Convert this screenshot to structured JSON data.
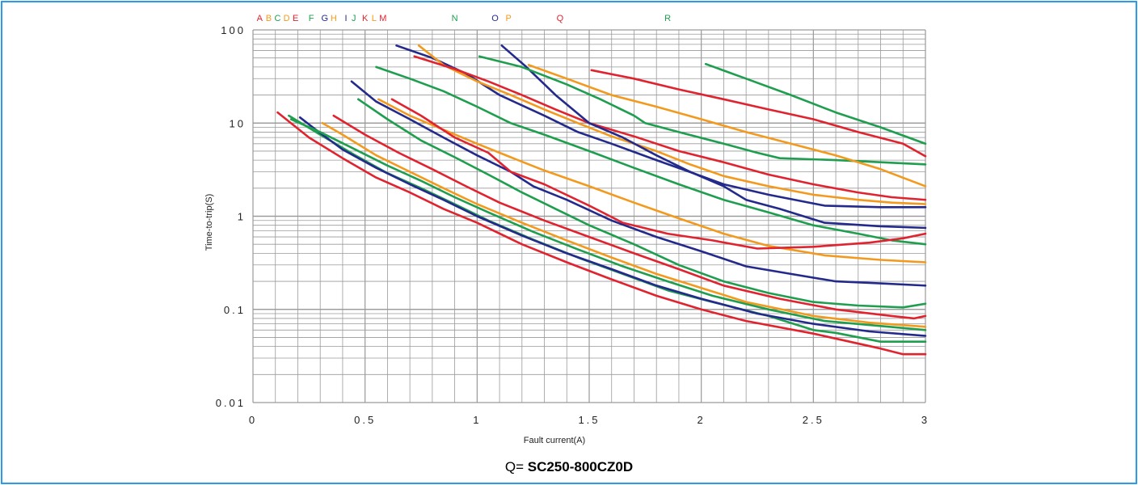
{
  "colors": {
    "border": "#2b9bea",
    "red": "#e0232e",
    "orange": "#f39a1e",
    "green": "#1e9e4e",
    "blue": "#232a8c",
    "grid": "#9a9a9a"
  },
  "caption": {
    "prefix": "Q=",
    "model": "SC250-800CZ0D"
  },
  "chart_data": {
    "type": "line",
    "xlabel": "Fault current(A)",
    "ylabel": "Time-to-trip(S)",
    "xlim": [
      0,
      3
    ],
    "ylim": [
      0.01,
      100
    ],
    "y_scale": "log",
    "grid": true,
    "x_ticks": [
      {
        "value": 0,
        "label": "0"
      },
      {
        "value": 0.5,
        "label": "0.5"
      },
      {
        "value": 1,
        "label": "1"
      },
      {
        "value": 1.5,
        "label": "1.5"
      },
      {
        "value": 2,
        "label": "2"
      },
      {
        "value": 2.5,
        "label": "2.5"
      },
      {
        "value": 3,
        "label": "3"
      }
    ],
    "y_ticks": [
      {
        "value": 100,
        "label": "100"
      },
      {
        "value": 10,
        "label": "10"
      },
      {
        "value": 1,
        "label": "1"
      },
      {
        "value": 0.1,
        "label": "0.1"
      },
      {
        "value": 0.01,
        "label": "0.01"
      }
    ],
    "curve_labels": [
      {
        "text": "A",
        "x": 0.03,
        "color": "red"
      },
      {
        "text": "B",
        "x": 0.07,
        "color": "orange"
      },
      {
        "text": "C",
        "x": 0.11,
        "color": "green"
      },
      {
        "text": "D",
        "x": 0.15,
        "color": "orange"
      },
      {
        "text": "E",
        "x": 0.19,
        "color": "red"
      },
      {
        "text": "F",
        "x": 0.26,
        "color": "green"
      },
      {
        "text": "G",
        "x": 0.32,
        "color": "blue"
      },
      {
        "text": "H",
        "x": 0.36,
        "color": "orange"
      },
      {
        "text": "I",
        "x": 0.415,
        "color": "blue"
      },
      {
        "text": "J",
        "x": 0.45,
        "color": "green"
      },
      {
        "text": "K",
        "x": 0.5,
        "color": "red"
      },
      {
        "text": "L",
        "x": 0.54,
        "color": "orange"
      },
      {
        "text": "M",
        "x": 0.58,
        "color": "red"
      },
      {
        "text": "N",
        "x": 0.9,
        "color": "green"
      },
      {
        "text": "O",
        "x": 1.08,
        "color": "blue"
      },
      {
        "text": "P",
        "x": 1.14,
        "color": "orange"
      },
      {
        "text": "Q",
        "x": 1.37,
        "color": "red"
      },
      {
        "text": "R",
        "x": 1.85,
        "color": "green"
      }
    ],
    "series": [
      {
        "color": "red",
        "points": [
          [
            0.11,
            13
          ],
          [
            0.25,
            7
          ],
          [
            0.4,
            4.2
          ],
          [
            0.55,
            2.6
          ],
          [
            0.7,
            1.8
          ],
          [
            0.85,
            1.2
          ],
          [
            1.0,
            0.85
          ],
          [
            1.2,
            0.5
          ],
          [
            1.4,
            0.32
          ],
          [
            1.6,
            0.21
          ],
          [
            1.8,
            0.14
          ],
          [
            2.0,
            0.1
          ],
          [
            2.2,
            0.075
          ],
          [
            2.5,
            0.055
          ],
          [
            2.8,
            0.038
          ],
          [
            2.9,
            0.033
          ],
          [
            3.0,
            0.033
          ]
        ]
      },
      {
        "color": "green",
        "points": [
          [
            0.16,
            12
          ],
          [
            0.3,
            7.5
          ],
          [
            0.45,
            4.6
          ],
          [
            0.6,
            2.9
          ],
          [
            0.75,
            2.0
          ],
          [
            0.9,
            1.35
          ],
          [
            1.05,
            0.9
          ],
          [
            1.25,
            0.56
          ],
          [
            1.45,
            0.36
          ],
          [
            1.65,
            0.24
          ],
          [
            1.85,
            0.16
          ],
          [
            2.05,
            0.12
          ],
          [
            2.3,
            0.085
          ],
          [
            2.5,
            0.06
          ],
          [
            2.6,
            0.056
          ],
          [
            2.8,
            0.045
          ],
          [
            3.0,
            0.045
          ]
        ]
      },
      {
        "color": "blue",
        "points": [
          [
            0.21,
            11.5
          ],
          [
            0.28,
            8.5
          ],
          [
            0.4,
            5.2
          ],
          [
            0.55,
            3.3
          ],
          [
            0.7,
            2.2
          ],
          [
            0.85,
            1.5
          ],
          [
            1.0,
            1.0
          ],
          [
            1.2,
            0.62
          ],
          [
            1.4,
            0.4
          ],
          [
            1.6,
            0.27
          ],
          [
            1.8,
            0.18
          ],
          [
            2.0,
            0.13
          ],
          [
            2.25,
            0.09
          ],
          [
            2.5,
            0.07
          ],
          [
            2.75,
            0.058
          ],
          [
            3.0,
            0.052
          ]
        ]
      },
      {
        "color": "green",
        "points": [
          [
            0.17,
            11
          ],
          [
            0.3,
            8
          ],
          [
            0.43,
            5.6
          ],
          [
            0.6,
            3.5
          ],
          [
            0.75,
            2.4
          ],
          [
            0.9,
            1.6
          ],
          [
            1.05,
            1.1
          ],
          [
            1.25,
            0.68
          ],
          [
            1.45,
            0.44
          ],
          [
            1.65,
            0.29
          ],
          [
            1.85,
            0.2
          ],
          [
            2.05,
            0.14
          ],
          [
            2.3,
            0.1
          ],
          [
            2.55,
            0.075
          ],
          [
            3.0,
            0.06
          ]
        ]
      },
      {
        "color": "orange",
        "points": [
          [
            0.31,
            10
          ],
          [
            0.4,
            7.5
          ],
          [
            0.55,
            4.5
          ],
          [
            0.7,
            3.0
          ],
          [
            0.85,
            2.0
          ],
          [
            1.0,
            1.35
          ],
          [
            1.2,
            0.85
          ],
          [
            1.4,
            0.55
          ],
          [
            1.6,
            0.36
          ],
          [
            1.8,
            0.24
          ],
          [
            2.0,
            0.17
          ],
          [
            2.2,
            0.12
          ],
          [
            2.5,
            0.085
          ],
          [
            2.75,
            0.072
          ],
          [
            3.0,
            0.065
          ]
        ]
      },
      {
        "color": "red",
        "points": [
          [
            0.36,
            12
          ],
          [
            0.5,
            7.5
          ],
          [
            0.65,
            4.8
          ],
          [
            0.8,
            3.2
          ],
          [
            0.95,
            2.1
          ],
          [
            1.1,
            1.4
          ],
          [
            1.3,
            0.9
          ],
          [
            1.5,
            0.6
          ],
          [
            1.7,
            0.4
          ],
          [
            1.9,
            0.27
          ],
          [
            2.1,
            0.18
          ],
          [
            2.35,
            0.13
          ],
          [
            2.6,
            0.1
          ],
          [
            2.85,
            0.085
          ],
          [
            2.95,
            0.08
          ],
          [
            3.0,
            0.085
          ]
        ]
      },
      {
        "color": "green",
        "points": [
          [
            0.47,
            18
          ],
          [
            0.6,
            11
          ],
          [
            0.75,
            6.5
          ],
          [
            0.9,
            4.3
          ],
          [
            1.05,
            2.8
          ],
          [
            1.2,
            1.8
          ],
          [
            1.35,
            1.2
          ],
          [
            1.5,
            0.8
          ],
          [
            1.7,
            0.5
          ],
          [
            1.9,
            0.3
          ],
          [
            2.1,
            0.2
          ],
          [
            2.3,
            0.15
          ],
          [
            2.5,
            0.12
          ],
          [
            2.7,
            0.11
          ],
          [
            2.9,
            0.105
          ],
          [
            3.0,
            0.115
          ]
        ]
      },
      {
        "color": "orange",
        "points": [
          [
            0.56,
            18
          ],
          [
            0.7,
            12
          ],
          [
            0.85,
            8.5
          ],
          [
            1.0,
            6.0
          ],
          [
            1.15,
            4.3
          ],
          [
            1.3,
            3.1
          ],
          [
            1.5,
            2.1
          ],
          [
            1.7,
            1.4
          ],
          [
            1.9,
            0.95
          ],
          [
            2.1,
            0.65
          ],
          [
            2.3,
            0.48
          ],
          [
            2.55,
            0.38
          ],
          [
            2.8,
            0.34
          ],
          [
            3.0,
            0.32
          ]
        ]
      },
      {
        "color": "blue",
        "points": [
          [
            0.44,
            28
          ],
          [
            0.55,
            17
          ],
          [
            0.7,
            11
          ],
          [
            0.85,
            7
          ],
          [
            1.0,
            4.5
          ],
          [
            1.15,
            3.0
          ],
          [
            1.25,
            2.1
          ],
          [
            1.4,
            1.5
          ],
          [
            1.6,
            0.9
          ],
          [
            1.8,
            0.6
          ],
          [
            2.0,
            0.42
          ],
          [
            2.2,
            0.29
          ],
          [
            2.4,
            0.24
          ],
          [
            2.6,
            0.2
          ],
          [
            2.8,
            0.19
          ],
          [
            3.0,
            0.18
          ]
        ]
      },
      {
        "color": "green",
        "points": [
          [
            0.55,
            40
          ],
          [
            0.7,
            30
          ],
          [
            0.85,
            22
          ],
          [
            1.0,
            15
          ],
          [
            1.15,
            10
          ],
          [
            1.3,
            7.5
          ],
          [
            1.5,
            5.0
          ],
          [
            1.7,
            3.3
          ],
          [
            1.9,
            2.2
          ],
          [
            2.1,
            1.5
          ],
          [
            2.3,
            1.1
          ],
          [
            2.5,
            0.8
          ],
          [
            2.7,
            0.65
          ],
          [
            2.85,
            0.55
          ],
          [
            3.0,
            0.5
          ]
        ]
      },
      {
        "color": "red",
        "points": [
          [
            0.62,
            18
          ],
          [
            0.75,
            12
          ],
          [
            0.9,
            7
          ],
          [
            1.05,
            4.8
          ],
          [
            1.15,
            3.0
          ],
          [
            1.3,
            2.2
          ],
          [
            1.5,
            1.3
          ],
          [
            1.65,
            0.85
          ],
          [
            1.85,
            0.65
          ],
          [
            2.05,
            0.55
          ],
          [
            2.25,
            0.45
          ],
          [
            2.5,
            0.47
          ],
          [
            2.75,
            0.52
          ],
          [
            2.9,
            0.58
          ],
          [
            3.0,
            0.65
          ]
        ]
      },
      {
        "color": "blue",
        "points": [
          [
            0.64,
            68
          ],
          [
            0.8,
            50
          ],
          [
            0.95,
            34
          ],
          [
            1.1,
            20
          ],
          [
            1.3,
            12
          ],
          [
            1.45,
            8
          ],
          [
            1.6,
            6
          ],
          [
            1.8,
            4
          ],
          [
            2.0,
            2.7
          ],
          [
            2.1,
            2.2
          ],
          [
            2.3,
            1.7
          ],
          [
            2.55,
            1.3
          ],
          [
            2.8,
            1.25
          ],
          [
            3.0,
            1.25
          ]
        ]
      },
      {
        "color": "orange",
        "points": [
          [
            0.74,
            68
          ],
          [
            0.85,
            42
          ],
          [
            1.0,
            28
          ],
          [
            1.15,
            20
          ],
          [
            1.3,
            14
          ],
          [
            1.45,
            10
          ],
          [
            1.6,
            7.2
          ],
          [
            1.8,
            5.0
          ],
          [
            1.95,
            3.6
          ],
          [
            2.1,
            2.7
          ],
          [
            2.3,
            2.1
          ],
          [
            2.5,
            1.7
          ],
          [
            2.7,
            1.5
          ],
          [
            2.85,
            1.4
          ],
          [
            3.0,
            1.35
          ]
        ]
      },
      {
        "color": "red",
        "points": [
          [
            0.72,
            52
          ],
          [
            0.9,
            38
          ],
          [
            1.05,
            28
          ],
          [
            1.2,
            20
          ],
          [
            1.35,
            14
          ],
          [
            1.5,
            10
          ],
          [
            1.7,
            7.2
          ],
          [
            1.9,
            5.0
          ],
          [
            2.1,
            3.8
          ],
          [
            2.3,
            2.8
          ],
          [
            2.5,
            2.2
          ],
          [
            2.7,
            1.8
          ],
          [
            2.85,
            1.6
          ],
          [
            3.0,
            1.5
          ]
        ]
      },
      {
        "color": "blue",
        "points": [
          [
            1.11,
            68
          ],
          [
            1.22,
            40
          ],
          [
            1.35,
            20
          ],
          [
            1.5,
            10
          ],
          [
            1.65,
            7
          ],
          [
            1.8,
            4.5
          ],
          [
            1.95,
            3
          ],
          [
            2.1,
            2.1
          ],
          [
            2.2,
            1.5
          ],
          [
            2.35,
            1.2
          ],
          [
            2.55,
            0.85
          ],
          [
            2.8,
            0.78
          ],
          [
            3.0,
            0.75
          ]
        ]
      },
      {
        "color": "green",
        "points": [
          [
            1.01,
            52
          ],
          [
            1.2,
            40
          ],
          [
            1.4,
            26
          ],
          [
            1.55,
            18
          ],
          [
            1.7,
            12
          ],
          [
            1.75,
            10
          ],
          [
            1.9,
            8
          ],
          [
            2.1,
            6
          ],
          [
            2.25,
            4.8
          ],
          [
            2.35,
            4.2
          ],
          [
            2.6,
            4.0
          ],
          [
            2.8,
            3.8
          ],
          [
            3.0,
            3.6
          ]
        ]
      },
      {
        "color": "orange",
        "points": [
          [
            1.23,
            42
          ],
          [
            1.4,
            30
          ],
          [
            1.6,
            20
          ],
          [
            1.8,
            15
          ],
          [
            2.0,
            11
          ],
          [
            2.2,
            8
          ],
          [
            2.4,
            6
          ],
          [
            2.6,
            4.5
          ],
          [
            2.8,
            3.2
          ],
          [
            3.0,
            2.1
          ]
        ]
      },
      {
        "color": "red",
        "points": [
          [
            1.51,
            37
          ],
          [
            1.7,
            30
          ],
          [
            1.9,
            23
          ],
          [
            2.1,
            18
          ],
          [
            2.3,
            14
          ],
          [
            2.5,
            11
          ],
          [
            2.7,
            8
          ],
          [
            2.9,
            6
          ],
          [
            3.0,
            4.4
          ]
        ]
      },
      {
        "color": "green",
        "points": [
          [
            2.02,
            43
          ],
          [
            2.2,
            30
          ],
          [
            2.4,
            20
          ],
          [
            2.6,
            13
          ],
          [
            2.8,
            9
          ],
          [
            3.0,
            6.0
          ]
        ]
      }
    ]
  }
}
